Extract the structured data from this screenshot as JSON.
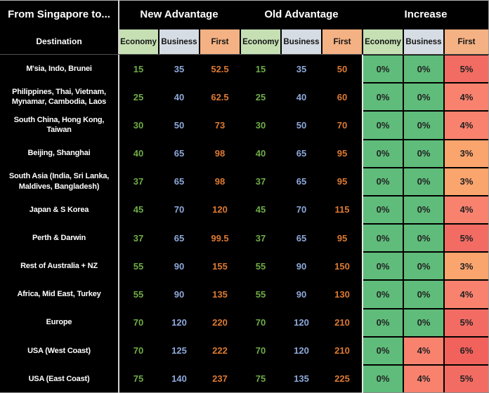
{
  "chart_data": {
    "type": "table",
    "corner_title": "From Singapore to...",
    "corner_subtitle": "Destination",
    "groups": [
      "New Advantage",
      "Old Advantage",
      "Increase"
    ],
    "sub_headers": [
      "Economy",
      "Business",
      "First"
    ],
    "rows": [
      {
        "destination": "M'sia, Indo, Brunei",
        "new": [
          "15",
          "35",
          "52.5"
        ],
        "old": [
          "15",
          "35",
          "50"
        ],
        "increase": [
          {
            "value": "0%",
            "level": "g"
          },
          {
            "value": "0%",
            "level": "g"
          },
          {
            "value": "5%",
            "level": "5"
          }
        ]
      },
      {
        "destination": "Philippines, Thai, Vietnam, Mynamar, Cambodia, Laos",
        "new": [
          "25",
          "40",
          "62.5"
        ],
        "old": [
          "25",
          "40",
          "60"
        ],
        "increase": [
          {
            "value": "0%",
            "level": "g"
          },
          {
            "value": "0%",
            "level": "g"
          },
          {
            "value": "4%",
            "level": "4"
          }
        ]
      },
      {
        "destination": "South China, Hong Kong, Taiwan",
        "new": [
          "30",
          "50",
          "73"
        ],
        "old": [
          "30",
          "50",
          "70"
        ],
        "increase": [
          {
            "value": "0%",
            "level": "g"
          },
          {
            "value": "0%",
            "level": "g"
          },
          {
            "value": "4%",
            "level": "4"
          }
        ]
      },
      {
        "destination": "Beijing, Shanghai",
        "new": [
          "40",
          "65",
          "98"
        ],
        "old": [
          "40",
          "65",
          "95"
        ],
        "increase": [
          {
            "value": "0%",
            "level": "g"
          },
          {
            "value": "0%",
            "level": "g"
          },
          {
            "value": "3%",
            "level": "3"
          }
        ]
      },
      {
        "destination": "South Asia (India, Sri Lanka, Maldives, Bangladesh)",
        "new": [
          "37",
          "65",
          "98"
        ],
        "old": [
          "37",
          "65",
          "95"
        ],
        "increase": [
          {
            "value": "0%",
            "level": "g"
          },
          {
            "value": "0%",
            "level": "g"
          },
          {
            "value": "3%",
            "level": "3"
          }
        ]
      },
      {
        "destination": "Japan & S Korea",
        "new": [
          "45",
          "70",
          "120"
        ],
        "old": [
          "45",
          "70",
          "115"
        ],
        "increase": [
          {
            "value": "0%",
            "level": "g"
          },
          {
            "value": "0%",
            "level": "g"
          },
          {
            "value": "4%",
            "level": "4"
          }
        ]
      },
      {
        "destination": "Perth & Darwin",
        "new": [
          "37",
          "65",
          "99.5"
        ],
        "old": [
          "37",
          "65",
          "95"
        ],
        "increase": [
          {
            "value": "0%",
            "level": "g"
          },
          {
            "value": "0%",
            "level": "g"
          },
          {
            "value": "5%",
            "level": "5"
          }
        ]
      },
      {
        "destination": "Rest of Australia + NZ",
        "new": [
          "55",
          "90",
          "155"
        ],
        "old": [
          "55",
          "90",
          "150"
        ],
        "increase": [
          {
            "value": "0%",
            "level": "g"
          },
          {
            "value": "0%",
            "level": "g"
          },
          {
            "value": "3%",
            "level": "3"
          }
        ]
      },
      {
        "destination": "Africa, Mid East, Turkey",
        "new": [
          "55",
          "90",
          "135"
        ],
        "old": [
          "55",
          "90",
          "130"
        ],
        "increase": [
          {
            "value": "0%",
            "level": "g"
          },
          {
            "value": "0%",
            "level": "g"
          },
          {
            "value": "4%",
            "level": "4"
          }
        ]
      },
      {
        "destination": "Europe",
        "new": [
          "70",
          "120",
          "220"
        ],
        "old": [
          "70",
          "120",
          "210"
        ],
        "increase": [
          {
            "value": "0%",
            "level": "g"
          },
          {
            "value": "0%",
            "level": "g"
          },
          {
            "value": "5%",
            "level": "5"
          }
        ]
      },
      {
        "destination": "USA (West Coast)",
        "new": [
          "70",
          "125",
          "222"
        ],
        "old": [
          "70",
          "120",
          "210"
        ],
        "increase": [
          {
            "value": "0%",
            "level": "g"
          },
          {
            "value": "4%",
            "level": "4"
          },
          {
            "value": "6%",
            "level": "6"
          }
        ]
      },
      {
        "destination": "USA (East Coast)",
        "new": [
          "75",
          "140",
          "237"
        ],
        "old": [
          "75",
          "135",
          "225"
        ],
        "increase": [
          {
            "value": "0%",
            "level": "g"
          },
          {
            "value": "4%",
            "level": "4"
          },
          {
            "value": "5%",
            "level": "5"
          }
        ]
      }
    ]
  },
  "colors": {
    "background": "#000000",
    "economy_header_bg": "#C6E0B4",
    "business_header_bg": "#D6DCE4",
    "first_header_bg": "#F4B183",
    "economy_text": "#70AD47",
    "business_text": "#8EA9DB",
    "first_text": "#DE7A32",
    "increase_0pct_bg": "#5FBC7A",
    "increase_3pct_bg": "#FAA46E",
    "increase_4pct_bg": "#F9826F",
    "increase_5pct_bg": "#F26C64",
    "increase_6pct_bg": "#F2625C"
  }
}
